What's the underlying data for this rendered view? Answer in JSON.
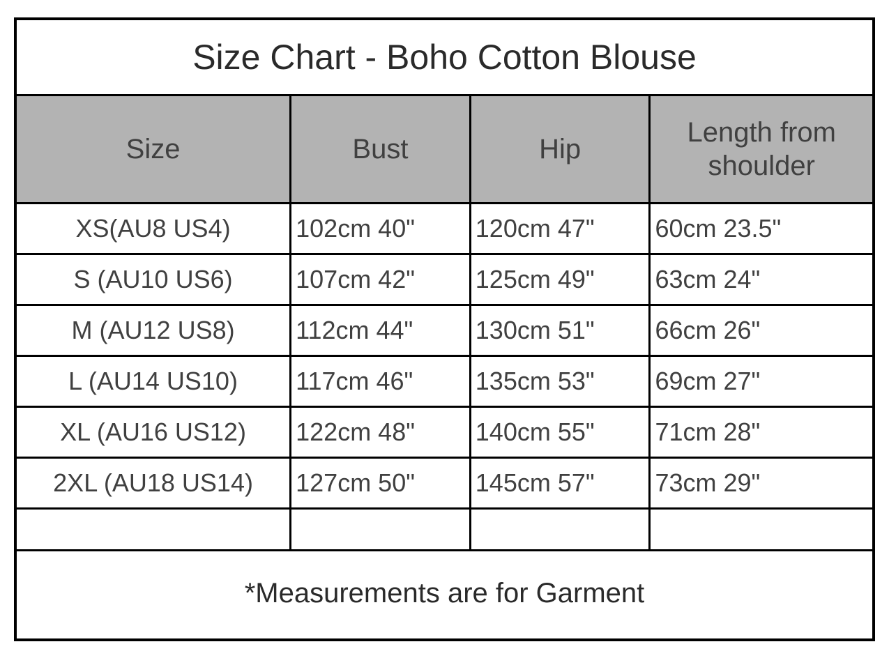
{
  "title": "Size Chart - Boho Cotton Blouse",
  "columns": [
    "Size",
    "Bust",
    "Hip",
    "Length from shoulder"
  ],
  "rows": [
    {
      "size": "XS(AU8  US4)",
      "bust": "102cm  40\"",
      "hip": "120cm  47\"",
      "length": "60cm  23.5\""
    },
    {
      "size": "S (AU10  US6)",
      "bust": "107cm  42\"",
      "hip": "125cm  49\"",
      "length": "63cm  24\""
    },
    {
      "size": "M (AU12  US8)",
      "bust": "112cm  44\"",
      "hip": "130cm  51\"",
      "length": "66cm  26\""
    },
    {
      "size": "L (AU14  US10)",
      "bust": "117cm 46\"",
      "hip": "135cm  53\"",
      "length": "69cm  27\""
    },
    {
      "size": "XL (AU16  US12)",
      "bust": "122cm  48\"",
      "hip": "140cm  55\"",
      "length": "71cm  28\""
    },
    {
      "size": "2XL (AU18  US14)",
      "bust": "127cm  50\"",
      "hip": "145cm  57\"",
      "length": "73cm  29\""
    }
  ],
  "footnote": "*Measurements are for Garment",
  "styling": {
    "type": "table",
    "outer_border_color": "#000000",
    "outer_border_width": 4,
    "cell_border_color": "#000000",
    "cell_border_width": 3,
    "header_bg_color": "#b3b3b3",
    "header_text_color": "#404040",
    "body_text_color": "#404040",
    "title_text_color": "#2a2a2a",
    "background_color": "#ffffff",
    "title_fontsize": 50,
    "header_fontsize": 40,
    "cell_fontsize": 36,
    "footnote_fontsize": 40,
    "column_widths_pct": [
      32,
      21,
      21,
      26
    ],
    "font_family": "Arial"
  }
}
